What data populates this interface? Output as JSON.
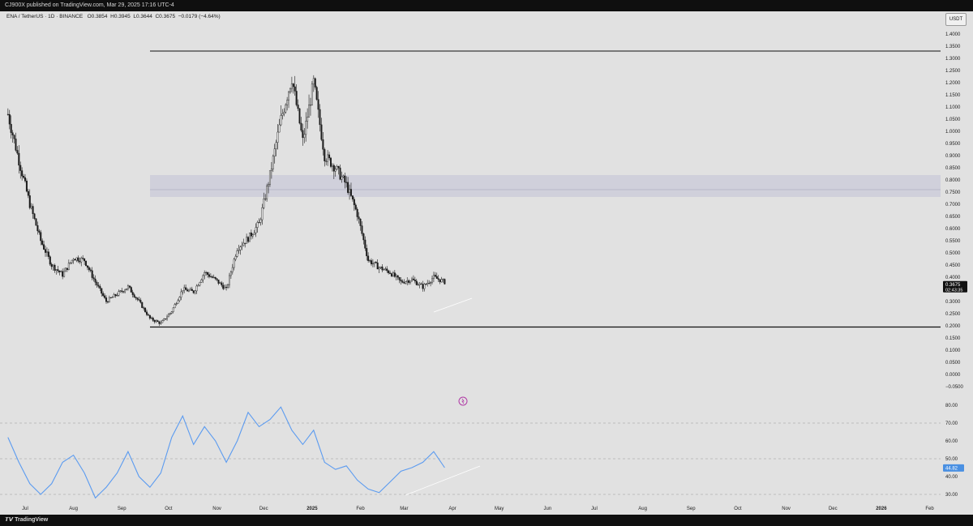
{
  "header": {
    "publisher_line": "CJ900X published on TradingView.com, Mar 29, 2025 17:16 UTC-4"
  },
  "legend": {
    "symbol": "ENA / TetherUS · 1D · BINANCE",
    "open": "O0.3854",
    "high": "H0.3945",
    "low": "L0.3644",
    "close": "C0.3675",
    "change": "−0.0179 (−4.64%)"
  },
  "currency_button": "USDT",
  "footer": {
    "brand": "TradingView"
  },
  "colors": {
    "background": "#e1e1e1",
    "candle": "#1a1a1a",
    "rsi_line": "#5b9bf0",
    "price_tag": "#111111",
    "rsi_tag": "#4a90e2"
  },
  "chart_data": [
    {
      "type": "candlestick",
      "series_name": "ENA / TetherUS",
      "ylim": [
        -0.05,
        1.4
      ],
      "price_ticks": [
        "1.4000",
        "1.3500",
        "1.3000",
        "1.2500",
        "1.2000",
        "1.1500",
        "1.1000",
        "1.0500",
        "1.0000",
        "0.9500",
        "0.9000",
        "0.8500",
        "0.8000",
        "0.7500",
        "0.7000",
        "0.6500",
        "0.6000",
        "0.5500",
        "0.5000",
        "0.4500",
        "0.4000",
        "0.3500",
        "0.3000",
        "0.2500",
        "0.2000",
        "0.1500",
        "0.1000",
        "0.0500",
        "0.0000",
        "−0.0500"
      ],
      "x_ticks": [
        "Jul",
        "Aug",
        "Sep",
        "Oct",
        "Nov",
        "Dec",
        "2025",
        "Feb",
        "Mar",
        "Apr",
        "May",
        "Jun",
        "Jul",
        "Aug",
        "Sep",
        "Oct",
        "Nov",
        "Dec",
        "2026",
        "Feb"
      ],
      "close_path": [
        [
          "2024-06-20",
          1.07
        ],
        [
          "2024-06-27",
          0.88
        ],
        [
          "2024-07-04",
          0.7
        ],
        [
          "2024-07-11",
          0.55
        ],
        [
          "2024-07-18",
          0.45
        ],
        [
          "2024-07-25",
          0.41
        ],
        [
          "2024-08-01",
          0.48
        ],
        [
          "2024-08-08",
          0.47
        ],
        [
          "2024-08-15",
          0.38
        ],
        [
          "2024-08-22",
          0.3
        ],
        [
          "2024-08-29",
          0.33
        ],
        [
          "2024-09-05",
          0.36
        ],
        [
          "2024-09-12",
          0.3
        ],
        [
          "2024-09-19",
          0.23
        ],
        [
          "2024-09-26",
          0.21
        ],
        [
          "2024-10-03",
          0.26
        ],
        [
          "2024-10-10",
          0.35
        ],
        [
          "2024-10-17",
          0.34
        ],
        [
          "2024-10-24",
          0.42
        ],
        [
          "2024-10-31",
          0.39
        ],
        [
          "2024-11-07",
          0.35
        ],
        [
          "2024-11-14",
          0.52
        ],
        [
          "2024-11-21",
          0.56
        ],
        [
          "2024-11-28",
          0.62
        ],
        [
          "2024-12-05",
          0.82
        ],
        [
          "2024-12-12",
          1.05
        ],
        [
          "2024-12-19",
          1.22
        ],
        [
          "2024-12-26",
          0.96
        ],
        [
          "2025-01-02",
          1.2
        ],
        [
          "2025-01-09",
          0.9
        ],
        [
          "2025-01-16",
          0.85
        ],
        [
          "2025-01-23",
          0.78
        ],
        [
          "2025-01-30",
          0.66
        ],
        [
          "2025-02-06",
          0.47
        ],
        [
          "2025-02-13",
          0.44
        ],
        [
          "2025-02-20",
          0.42
        ],
        [
          "2025-02-27",
          0.38
        ],
        [
          "2025-03-06",
          0.39
        ],
        [
          "2025-03-13",
          0.36
        ],
        [
          "2025-03-20",
          0.4
        ],
        [
          "2025-03-27",
          0.38
        ]
      ],
      "high_line": 1.33,
      "low_line": 0.195,
      "resistance_zone": [
        0.73,
        0.82
      ],
      "resistance_mid": 0.76,
      "last_price": "0.3675",
      "countdown": "02:43:35"
    },
    {
      "type": "line",
      "series_name": "RSI",
      "ylim": [
        20,
        85
      ],
      "rsi_ticks": [
        "80.00",
        "70.00",
        "60.00",
        "50.00",
        "40.00",
        "30.00"
      ],
      "levels": [
        70,
        50,
        30
      ],
      "values": [
        [
          "2024-06-20",
          62
        ],
        [
          "2024-06-27",
          48
        ],
        [
          "2024-07-04",
          36
        ],
        [
          "2024-07-11",
          30
        ],
        [
          "2024-07-18",
          36
        ],
        [
          "2024-07-25",
          48
        ],
        [
          "2024-08-01",
          52
        ],
        [
          "2024-08-08",
          42
        ],
        [
          "2024-08-15",
          28
        ],
        [
          "2024-08-22",
          34
        ],
        [
          "2024-08-29",
          42
        ],
        [
          "2024-09-05",
          54
        ],
        [
          "2024-09-12",
          40
        ],
        [
          "2024-09-19",
          34
        ],
        [
          "2024-09-26",
          42
        ],
        [
          "2024-10-03",
          62
        ],
        [
          "2024-10-10",
          74
        ],
        [
          "2024-10-17",
          58
        ],
        [
          "2024-10-24",
          68
        ],
        [
          "2024-10-31",
          60
        ],
        [
          "2024-11-07",
          48
        ],
        [
          "2024-11-14",
          60
        ],
        [
          "2024-11-21",
          76
        ],
        [
          "2024-11-28",
          68
        ],
        [
          "2024-12-05",
          72
        ],
        [
          "2024-12-12",
          79
        ],
        [
          "2024-12-19",
          66
        ],
        [
          "2024-12-26",
          58
        ],
        [
          "2025-01-02",
          66
        ],
        [
          "2025-01-09",
          48
        ],
        [
          "2025-01-16",
          44
        ],
        [
          "2025-01-23",
          46
        ],
        [
          "2025-01-30",
          38
        ],
        [
          "2025-02-06",
          33
        ],
        [
          "2025-02-13",
          31
        ],
        [
          "2025-02-20",
          37
        ],
        [
          "2025-02-27",
          43
        ],
        [
          "2025-03-06",
          45
        ],
        [
          "2025-03-13",
          48
        ],
        [
          "2025-03-20",
          54
        ],
        [
          "2025-03-27",
          45
        ]
      ],
      "last_value": "44.82"
    }
  ]
}
